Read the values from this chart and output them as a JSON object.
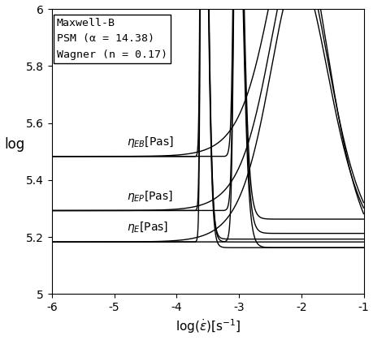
{
  "xlabel": "log($\\dot{\\varepsilon}$)[s$^{-1}$]",
  "ylabel": "log",
  "xlim": [
    -6,
    -1
  ],
  "ylim": [
    5.0,
    6.0
  ],
  "xticks": [
    -6,
    -5,
    -4,
    -3,
    -2,
    -1
  ],
  "yticks": [
    5.0,
    5.2,
    5.4,
    5.6,
    5.8,
    6.0
  ],
  "legend_labels": [
    "Maxwell-B",
    "PSM (α = 14.38)",
    "Wagner (n = 0.17)"
  ],
  "eta_EB_plateau": 5.483,
  "eta_EP_plateau": 5.293,
  "eta_E_plateau": 5.183,
  "line_color": "#000000",
  "background_color": "#ffffff",
  "figsize": [
    4.6,
    4.19
  ],
  "dpi": 100
}
